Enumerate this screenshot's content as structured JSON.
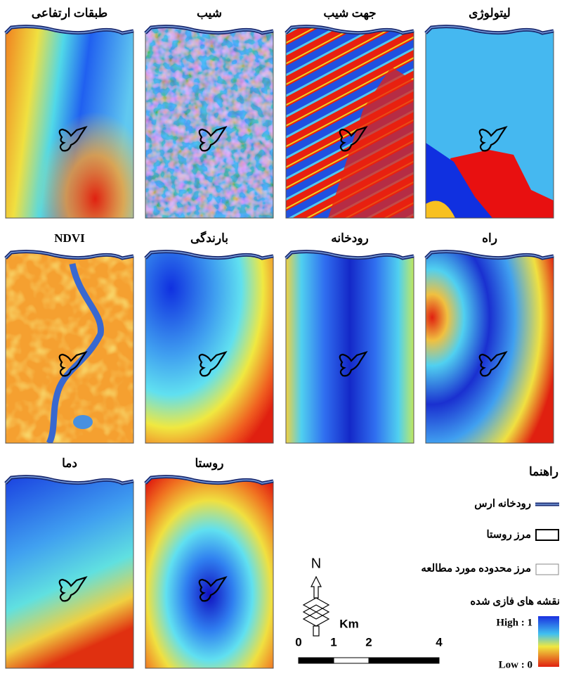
{
  "panels": [
    {
      "title": "طبقات ارتفاعی"
    },
    {
      "title": "شیب"
    },
    {
      "title": "جهت شیب"
    },
    {
      "title": "لیتولوژی"
    },
    {
      "title": "NDVI"
    },
    {
      "title": "بارندگی"
    },
    {
      "title": "رودخانه"
    },
    {
      "title": "راه"
    },
    {
      "title": "دما"
    },
    {
      "title": "روستا"
    }
  ],
  "legend": {
    "title": "راهنما",
    "items": [
      "رودخانه ارس",
      "مرز روستا",
      "مرز محدوده مورد مطالعه"
    ],
    "fuzzy_title": "نقشه های فازی شده",
    "high": "High : 1",
    "low": "Low : 0"
  },
  "north": "N",
  "scale_bar": {
    "unit": "Km",
    "ticks": [
      0,
      1,
      2,
      4
    ]
  }
}
